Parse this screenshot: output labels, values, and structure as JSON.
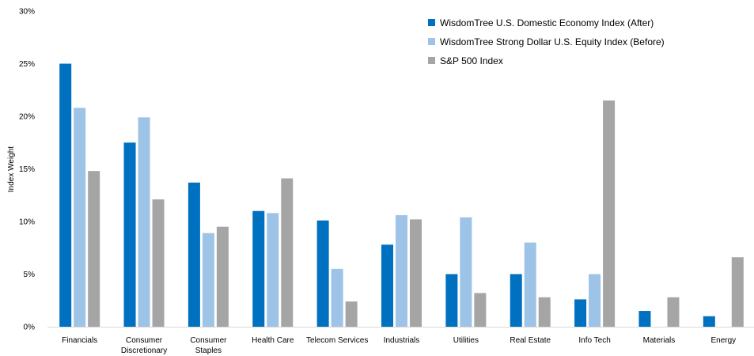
{
  "chart_data": {
    "type": "bar",
    "title": "",
    "xlabel": "",
    "ylabel": "Index Weight",
    "ylim": [
      0,
      30
    ],
    "yticks": [
      "0%",
      "5%",
      "10%",
      "15%",
      "20%",
      "25%",
      "30%"
    ],
    "grid": false,
    "legend_position": "top-right",
    "categories": [
      "Financials",
      "Consumer Discretionary",
      "Consumer Staples",
      "Health Care",
      "Telecom Services",
      "Industrials",
      "Utilities",
      "Real Estate",
      "Info Tech",
      "Materials",
      "Energy"
    ],
    "category_lines": [
      [
        "Financials"
      ],
      [
        "Consumer",
        "Discretionary"
      ],
      [
        "Consumer",
        "Staples"
      ],
      [
        "Health Care"
      ],
      [
        "Telecom Services"
      ],
      [
        "Industrials"
      ],
      [
        "Utilities"
      ],
      [
        "Real Estate"
      ],
      [
        "Info Tech"
      ],
      [
        "Materials"
      ],
      [
        "Energy"
      ]
    ],
    "series": [
      {
        "name": "WisdomTree U.S. Domestic Economy Index (After)",
        "color": "#0070C0",
        "values": [
          25.0,
          17.5,
          13.7,
          11.0,
          10.1,
          7.8,
          5.0,
          5.0,
          2.6,
          1.5,
          1.0
        ]
      },
      {
        "name": "WisdomTree Strong Dollar U.S. Equity Index (Before)",
        "color": "#9DC3E6",
        "values": [
          20.8,
          19.9,
          8.9,
          10.8,
          5.5,
          10.6,
          10.4,
          8.0,
          5.0,
          0,
          0
        ]
      },
      {
        "name": "S&P 500 Index",
        "color": "#A5A5A5",
        "values": [
          14.8,
          12.1,
          9.5,
          14.1,
          2.4,
          10.2,
          3.2,
          2.8,
          21.5,
          2.8,
          6.6
        ]
      }
    ]
  }
}
